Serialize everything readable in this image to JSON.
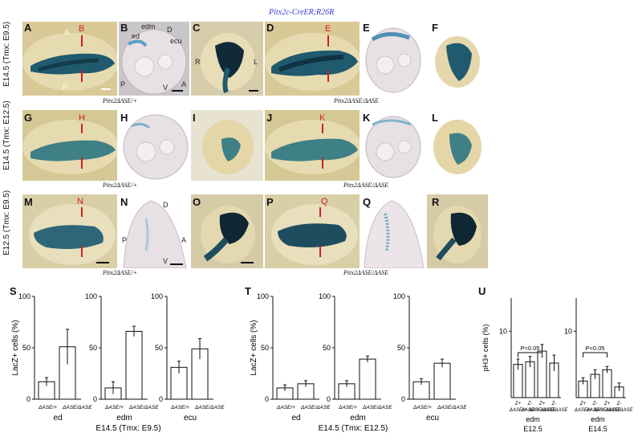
{
  "figure_title": "Pitx2c-CreER;R26R",
  "row_labels": [
    "E14.5 (Tmx: E9.5)",
    "E14.5 (Tmx: E12.5)",
    "E12.5 (Tmx: E9.5)"
  ],
  "panels": {
    "A": "A",
    "B": "B",
    "C": "C",
    "D": "D",
    "E": "E",
    "F": "F",
    "G": "G",
    "H": "H",
    "I": "I",
    "J": "J",
    "K": "K",
    "L": "L",
    "M": "M",
    "N": "N",
    "O": "O",
    "P": "P",
    "Q": "Q",
    "R": "R",
    "S": "S",
    "T": "T",
    "U": "U"
  },
  "annotations": {
    "A_top": "A",
    "A_bottom": "P",
    "B_ed": "ed",
    "B_edm": "edm",
    "B_D": "D",
    "B_ecu": "ecu",
    "B_P": "P",
    "B_V": "V",
    "B_A": "A",
    "C_R": "R",
    "C_L": "L",
    "N_D": "D",
    "N_P": "P",
    "N_A": "A",
    "N_V": "V",
    "red_B": "B",
    "red_E": "E",
    "red_H": "H",
    "red_K": "K",
    "red_N": "N",
    "red_Q": "Q"
  },
  "genotypes": {
    "row1_left": "Pitx2ΔASE/+",
    "row1_right": "Pitx2ΔASE/ΔASE",
    "row2_left": "Pitx2ΔASE/+",
    "row2_right": "Pitx2ΔASE/ΔASE",
    "row3_left": "Pitx2ΔASE/+",
    "row3_right": "Pitx2ΔASE/ΔASE"
  },
  "colors": {
    "stain_blue": "#1f5a6e",
    "tissue_tan": "#c9b98a",
    "section_bg": "#e4dde2",
    "red_marker": "#d21f1f",
    "title_blue": "#3a3ad6"
  },
  "chart_data": [
    {
      "type": "bar",
      "panel": "S",
      "ylabel": "LacZ+ cells (%)",
      "xlabel": "E14.5 (Tmx: E9.5)",
      "group_categories": [
        "ΔASE/+",
        "ΔASE/ΔASE"
      ],
      "groups": [
        {
          "name": "ed",
          "values": [
            17,
            51
          ],
          "errors": [
            4,
            17
          ],
          "ylim": [
            0,
            100
          ],
          "yticks": [
            0,
            50,
            100
          ]
        },
        {
          "name": "edm",
          "values": [
            11,
            66
          ],
          "errors": [
            6,
            5
          ],
          "ylim": [
            0,
            100
          ],
          "yticks": [
            0,
            50,
            100
          ]
        },
        {
          "name": "ecu",
          "values": [
            31,
            49
          ],
          "errors": [
            6,
            10
          ],
          "ylim": [
            0,
            100
          ],
          "yticks": [
            0,
            50,
            100
          ]
        }
      ]
    },
    {
      "type": "bar",
      "panel": "T",
      "ylabel": "LacZ+ cells (%)",
      "xlabel": "E14.5 (Tmx: E12.5)",
      "group_categories": [
        "ΔASE/+",
        "ΔASE/ΔASE"
      ],
      "groups": [
        {
          "name": "ed",
          "values": [
            11,
            15
          ],
          "errors": [
            3,
            3
          ],
          "ylim": [
            0,
            100
          ],
          "yticks": [
            0,
            50,
            100
          ]
        },
        {
          "name": "edm",
          "values": [
            15,
            39
          ],
          "errors": [
            3,
            3
          ],
          "ylim": [
            0,
            100
          ],
          "yticks": [
            0,
            50,
            100
          ]
        },
        {
          "name": "ecu",
          "values": [
            17,
            35
          ],
          "errors": [
            3,
            4
          ],
          "ylim": [
            0,
            100
          ],
          "yticks": [
            0,
            50,
            100
          ]
        }
      ]
    },
    {
      "type": "bar",
      "panel": "U",
      "ylabel": "pH3+ cells (%)",
      "group_categories": [
        "Z+ ΔASE/+",
        "Z- ΔASE/+",
        "Z+ ΔASE/ΔASE",
        "Z- ΔASE/ΔASE"
      ],
      "significance": "P<0.05",
      "groups": [
        {
          "name": "edm",
          "stage": "E12.5",
          "values": [
            5.0,
            5.4,
            7.0,
            5.2
          ],
          "errors": [
            0.8,
            0.8,
            1.0,
            1.2
          ],
          "ylim": [
            0,
            15
          ],
          "yticks": [
            10
          ]
        },
        {
          "name": "edm",
          "stage": "E14.5",
          "values": [
            2.5,
            3.5,
            4.2,
            1.6
          ],
          "errors": [
            0.5,
            0.7,
            0.5,
            0.6
          ],
          "ylim": [
            0,
            15
          ],
          "yticks": [
            10
          ]
        }
      ]
    }
  ]
}
